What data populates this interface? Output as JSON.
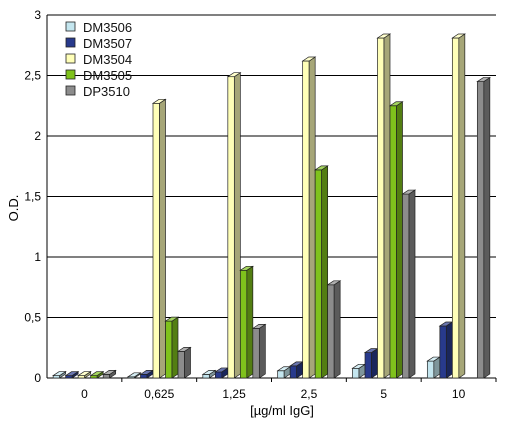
{
  "chart_data": {
    "type": "bar",
    "title": "",
    "xlabel": "[µg/ml IgG]",
    "ylabel": "O.D.",
    "categories": [
      "0",
      "0,625",
      "1,25",
      "2,5",
      "5",
      "10"
    ],
    "ylim": [
      0,
      3
    ],
    "yticks": [
      "0",
      "0,5",
      "1",
      "1,5",
      "2",
      "2,5",
      "3"
    ],
    "grid": true,
    "legend_position": "top-left",
    "series": [
      {
        "name": "DM3506",
        "color": "#c4e6ef",
        "values": [
          0.02,
          0.01,
          0.03,
          0.06,
          0.08,
          0.14
        ]
      },
      {
        "name": "DM3507",
        "color": "#283a8c",
        "values": [
          0.02,
          0.03,
          0.05,
          0.1,
          0.21,
          0.43
        ]
      },
      {
        "name": "DM3504",
        "color": "#ffffb8",
        "values": [
          0.02,
          2.27,
          2.49,
          2.62,
          2.81,
          2.81
        ]
      },
      {
        "name": "DM3505",
        "color": "#7fc21c",
        "values": [
          0.02,
          0.47,
          0.89,
          1.72,
          2.25,
          0.0
        ]
      },
      {
        "name": "DP3510",
        "color": "#8c8c8c",
        "values": [
          0.03,
          0.22,
          0.41,
          0.77,
          1.52,
          2.45
        ]
      }
    ]
  }
}
